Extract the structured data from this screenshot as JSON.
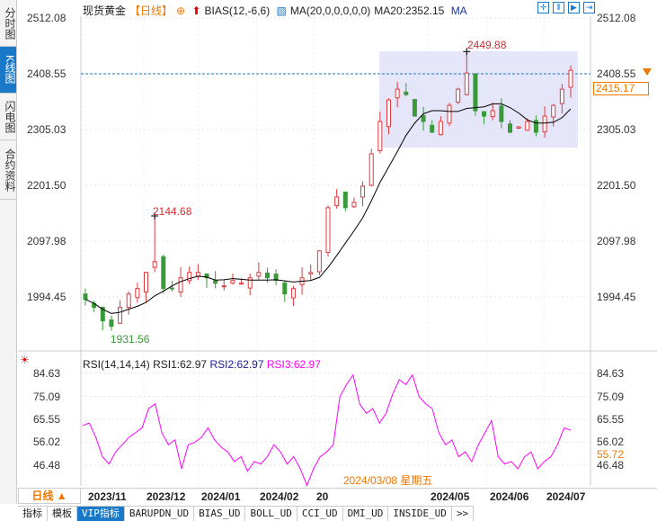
{
  "sidebar": {
    "tabs": [
      {
        "label": "分时图",
        "active": false
      },
      {
        "label": "K线图",
        "active": true
      },
      {
        "label": "闪电图",
        "active": false
      },
      {
        "label": "合约资料",
        "active": false
      }
    ]
  },
  "header": {
    "symbol": "现货黄金",
    "period": "【日线】",
    "indicator": "BIAS(12,-6,6)",
    "ma_label": "MA(20,0,0,0,0,0)",
    "ma20": "MA20:2352.15",
    "ma_btn": "MA"
  },
  "toolbar_icons": [
    "crosshair-icon",
    "range-icon",
    "play-icon",
    "forward-icon"
  ],
  "main_axis": {
    "ticks": [
      "2512.08",
      "2408.55",
      "2305.03",
      "2201.50",
      "2097.98",
      "1994.45"
    ],
    "current_price": "2415.17",
    "high_label": "2449.88",
    "low_label": "1931.56",
    "prev_line": "2408.55"
  },
  "rsi": {
    "title": "RSI(14,14,14)",
    "rsi1": "RSI1:62.97",
    "rsi2": "RSI2:62.97",
    "rsi3": "RSI3:62.97",
    "ticks": [
      "84.63",
      "75.09",
      "65.55",
      "56.02",
      "46.48"
    ],
    "current": "55.72"
  },
  "colors": {
    "up": "#e0393e",
    "down": "#3a9a3a",
    "ma": "#000000",
    "rsi": "#ff00ff",
    "accent": "#1a78c8",
    "orange": "#f07800"
  },
  "dates": [
    "2023/11",
    "2023/12",
    "2024/01",
    "2024/02",
    "20",
    "2024/05",
    "2024/06",
    "2024/07"
  ],
  "crosshair_date": "2024/03/08 星期五",
  "period_btn": "日线 ▲",
  "bottom_tabs": [
    "指标",
    "模板",
    "VIP指标",
    "BARUPDN_UD",
    "BIAS_UD",
    "BOLL_UD",
    "CCI_UD",
    "DMI_UD",
    "INSIDE_UD",
    ">>"
  ],
  "chart_data": {
    "type": "candlestick",
    "closes": [
      1990,
      1975,
      1950,
      1940,
      1975,
      2000,
      2010,
      2040,
      2060,
      2010,
      2010,
      2030,
      2040,
      2040,
      2030,
      2020,
      2015,
      2025,
      2020,
      2030,
      2040,
      2030,
      2025,
      2000,
      2010,
      2030,
      2040,
      2080,
      2160,
      2180,
      2160,
      2170,
      2200,
      2260,
      2320,
      2360,
      2380,
      2370,
      2330,
      2320,
      2300,
      2320,
      2350,
      2380,
      2410,
      2340,
      2330,
      2340,
      2320,
      2300,
      2310,
      2320,
      2300,
      2330,
      2350,
      2380,
      2415
    ],
    "rsi": [
      63,
      64,
      58,
      50,
      47,
      52,
      55,
      58,
      60,
      62,
      70,
      72,
      60,
      55,
      57,
      45,
      55,
      56,
      58,
      62,
      57,
      54,
      52,
      48,
      50,
      44,
      48,
      47,
      50,
      55,
      52,
      47,
      50,
      45,
      38,
      45,
      50,
      52,
      55,
      75,
      80,
      84,
      72,
      68,
      70,
      64,
      68,
      76,
      82,
      80,
      84,
      75,
      72,
      70,
      60,
      55,
      57,
      50,
      52,
      48,
      55,
      60,
      65,
      50,
      47,
      48,
      45,
      50,
      52,
      45,
      48,
      50,
      55,
      62,
      61
    ],
    "ylim": [
      1994.45,
      2512.08
    ],
    "rsi_ylim": [
      46.48,
      84.63
    ]
  }
}
